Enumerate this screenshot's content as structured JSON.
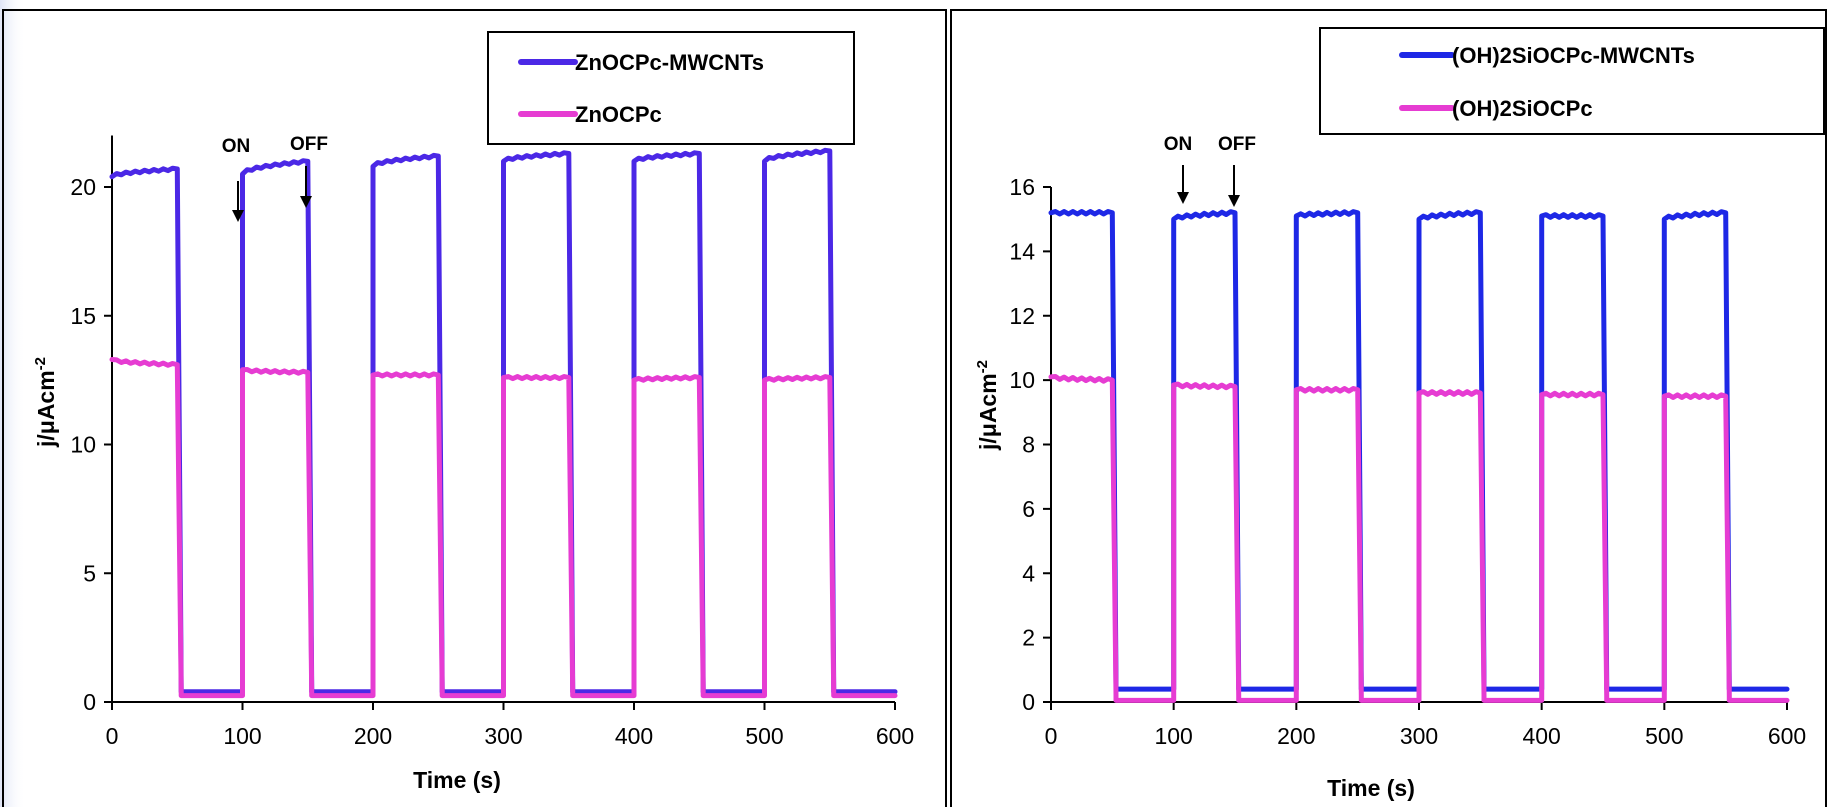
{
  "chart_data": [
    {
      "type": "line",
      "title": "",
      "xlabel": "Time (s)",
      "ylabel": "j/μAcm",
      "ylabel_superscript": "-2",
      "xlim": [
        0,
        600
      ],
      "ylim": [
        0,
        22
      ],
      "xticks": [
        0,
        100,
        200,
        300,
        400,
        500,
        600
      ],
      "yticks": [
        0,
        5,
        10,
        15,
        20
      ],
      "grid": false,
      "legend_position": "top-right",
      "light_on_intervals": [
        [
          0,
          50
        ],
        [
          100,
          150
        ],
        [
          200,
          250
        ],
        [
          300,
          350
        ],
        [
          400,
          450
        ],
        [
          500,
          550
        ]
      ],
      "series": [
        {
          "name": "ZnOCPc-MWCNTs",
          "color": "#4B28E6",
          "on_start": [
            20.4,
            20.5,
            20.8,
            21.0,
            21.0,
            21.0
          ],
          "on_end": [
            20.7,
            21.0,
            21.2,
            21.3,
            21.3,
            21.4
          ],
          "off_value": 0.4
        },
        {
          "name": "ZnOCPc",
          "color": "#E63CD2",
          "on_start": [
            13.3,
            12.9,
            12.7,
            12.6,
            12.5,
            12.5
          ],
          "on_end": [
            13.1,
            12.8,
            12.7,
            12.6,
            12.6,
            12.6
          ],
          "off_value": 0.25
        }
      ],
      "annotations": [
        {
          "text": "ON",
          "x": 100
        },
        {
          "text": "OFF",
          "x": 152
        }
      ]
    },
    {
      "type": "line",
      "title": "",
      "xlabel": "Time (s)",
      "ylabel": "j/μAcm",
      "ylabel_superscript": "-2",
      "xlim": [
        0,
        600
      ],
      "ylim": [
        0,
        16
      ],
      "xticks": [
        0,
        100,
        200,
        300,
        400,
        500,
        600
      ],
      "yticks": [
        0,
        2,
        4,
        6,
        8,
        10,
        12,
        14,
        16
      ],
      "grid": false,
      "legend_position": "top-right",
      "light_on_intervals": [
        [
          0,
          50
        ],
        [
          100,
          150
        ],
        [
          200,
          250
        ],
        [
          300,
          350
        ],
        [
          400,
          450
        ],
        [
          500,
          550
        ]
      ],
      "series": [
        {
          "name": "(OH)2SiOCPc-MWCNTs",
          "color": "#1E28E6",
          "on_start": [
            15.2,
            15.0,
            15.1,
            15.0,
            15.1,
            15.0
          ],
          "on_end": [
            15.2,
            15.2,
            15.2,
            15.2,
            15.1,
            15.2
          ],
          "off_value": 0.4
        },
        {
          "name": "(OH)2SiOCPc",
          "color": "#E63CD2",
          "on_start": [
            10.1,
            9.85,
            9.7,
            9.6,
            9.55,
            9.5
          ],
          "on_end": [
            10.0,
            9.8,
            9.7,
            9.6,
            9.55,
            9.5
          ],
          "off_value": 0.05
        }
      ],
      "annotations": [
        {
          "text": "ON",
          "x": 107
        },
        {
          "text": "OFF",
          "x": 150
        }
      ]
    }
  ]
}
